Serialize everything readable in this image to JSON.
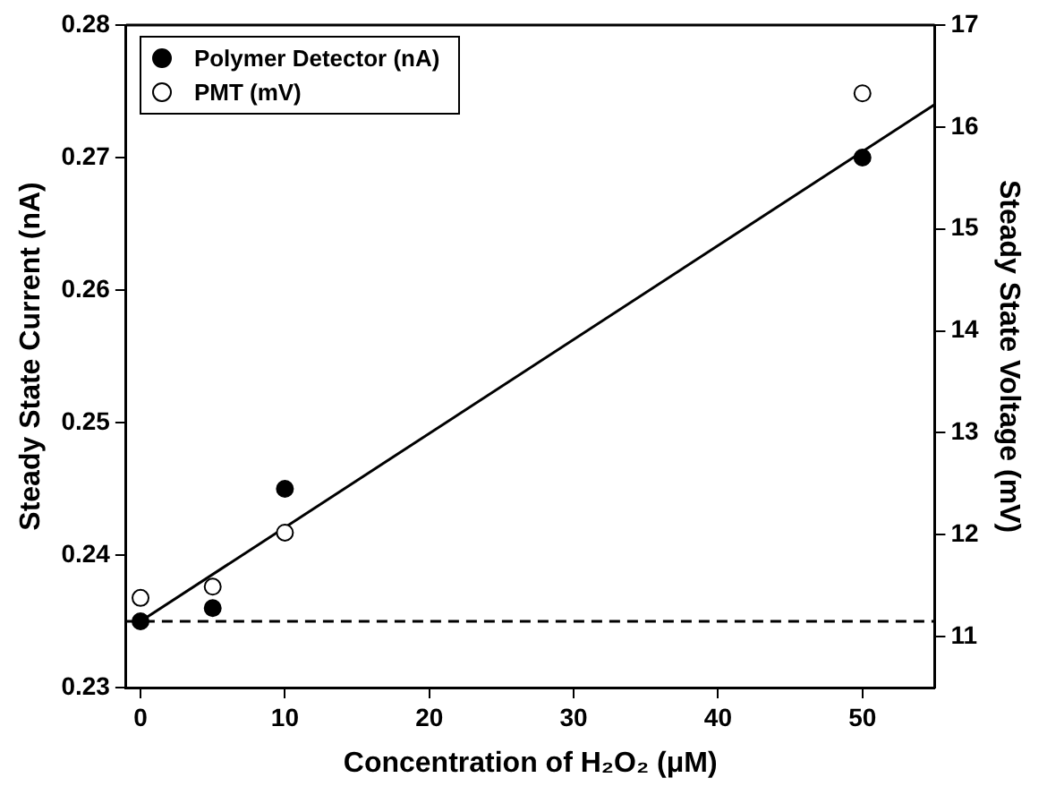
{
  "chart_data": {
    "type": "scatter",
    "xlabel": "Concentration of H₂O₂ (μM)",
    "ylabel": "Steady State Current (nA)",
    "y2label": "Steady State Voltage (mV)",
    "series": [
      {
        "name": "Polymer Detector (nA)",
        "color": "#000000",
        "x": [
          0,
          5,
          10,
          50
        ],
        "values": [
          0.235,
          0.236,
          0.245,
          0.27
        ]
      },
      {
        "name": "PMT (mV)",
        "color": "#000000",
        "axis": "y2",
        "x": [
          0,
          5,
          10,
          50
        ],
        "values": [
          11.38,
          11.49,
          12.02,
          16.33
        ]
      },
      {
        "type": "line",
        "marker": "none",
        "color": "#000000",
        "x": [
          0,
          55
        ],
        "values": [
          0.235,
          0.274
        ]
      }
    ],
    "ref_lines": [
      {
        "axis": "y",
        "value": 0.235,
        "color": "#000000",
        "line_style": "dashed"
      }
    ],
    "xlim": [
      -1,
      55
    ],
    "xticks": [
      0,
      10,
      20,
      30,
      40,
      50
    ],
    "ylim": [
      0.23,
      0.28
    ],
    "yticks": [
      0.23,
      0.24,
      0.25,
      0.26,
      0.27,
      0.28
    ],
    "y2lim": [
      10.5,
      17
    ],
    "y2ticks": [
      11,
      12,
      13,
      14,
      15,
      16,
      17
    ],
    "legend": "top left",
    "marker": "circle",
    "grid": false
  }
}
